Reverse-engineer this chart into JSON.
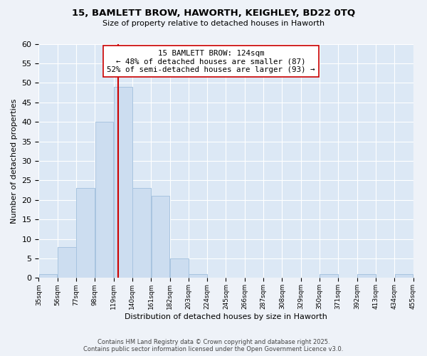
{
  "title1": "15, BAMLETT BROW, HAWORTH, KEIGHLEY, BD22 0TQ",
  "title2": "Size of property relative to detached houses in Haworth",
  "xlabel": "Distribution of detached houses by size in Haworth",
  "ylabel": "Number of detached properties",
  "bar_color": "#ccddf0",
  "bar_edge_color": "#a8c4e0",
  "bin_edges": [
    35,
    56,
    77,
    98,
    119,
    140,
    161,
    182,
    203,
    224,
    245,
    266,
    287,
    308,
    329,
    350,
    371,
    392,
    413,
    434,
    455
  ],
  "bar_heights": [
    1,
    8,
    23,
    40,
    49,
    23,
    21,
    5,
    1,
    0,
    0,
    0,
    0,
    0,
    0,
    1,
    0,
    1,
    0,
    1
  ],
  "tick_labels": [
    "35sqm",
    "56sqm",
    "77sqm",
    "98sqm",
    "119sqm",
    "140sqm",
    "161sqm",
    "182sqm",
    "203sqm",
    "224sqm",
    "245sqm",
    "266sqm",
    "287sqm",
    "308sqm",
    "329sqm",
    "350sqm",
    "371sqm",
    "392sqm",
    "413sqm",
    "434sqm",
    "455sqm"
  ],
  "property_value": 124,
  "vline_color": "#cc0000",
  "annotation_line1": "15 BAMLETT BROW: 124sqm",
  "annotation_line2": "← 48% of detached houses are smaller (87)",
  "annotation_line3": "52% of semi-detached houses are larger (93) →",
  "annotation_box_color": "#ffffff",
  "annotation_box_edge": "#cc0000",
  "ylim": [
    0,
    60
  ],
  "yticks": [
    0,
    5,
    10,
    15,
    20,
    25,
    30,
    35,
    40,
    45,
    50,
    55,
    60
  ],
  "footer1": "Contains HM Land Registry data © Crown copyright and database right 2025.",
  "footer2": "Contains public sector information licensed under the Open Government Licence v3.0.",
  "bg_color": "#eef2f8",
  "plot_bg_color": "#dce8f5"
}
